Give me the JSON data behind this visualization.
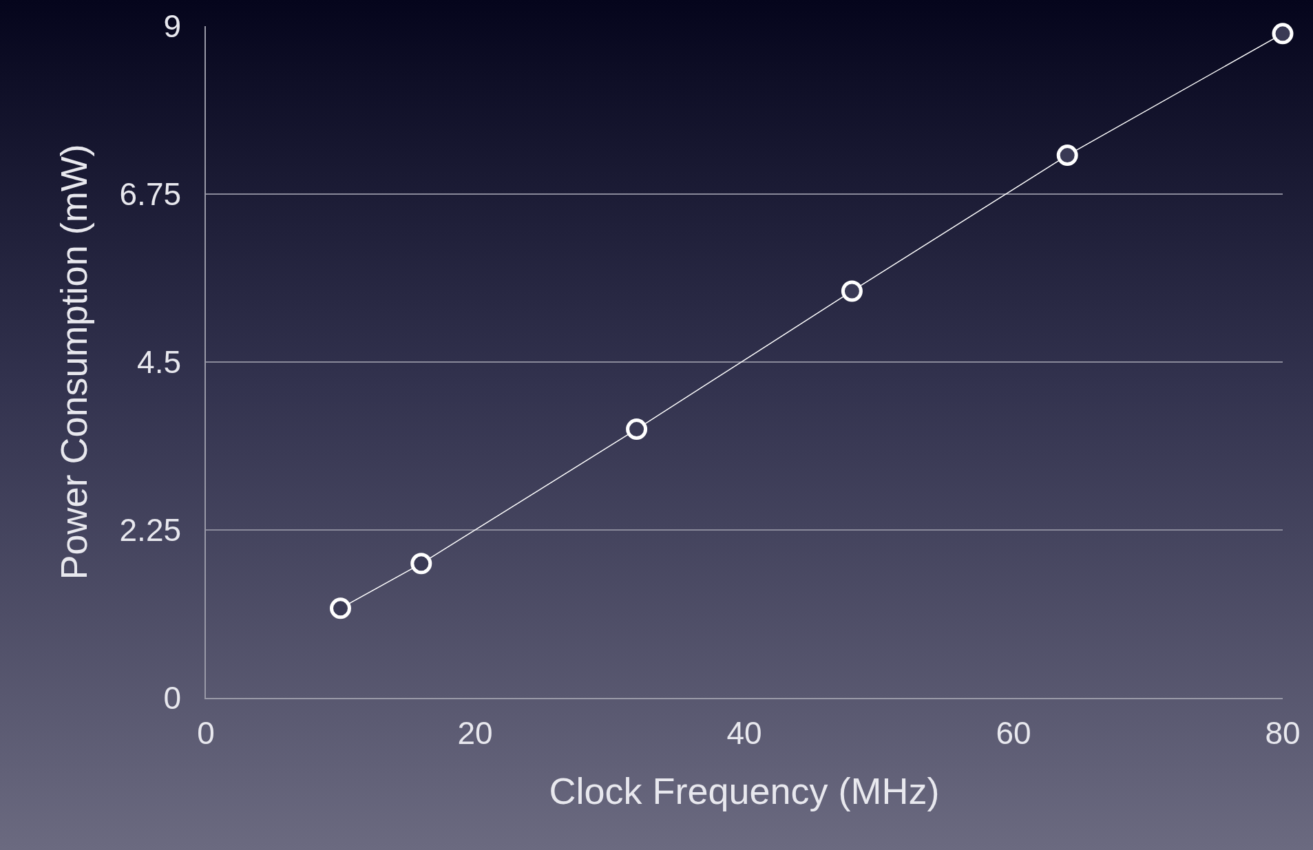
{
  "chart_data": {
    "type": "line",
    "xlabel": "Clock Frequency (MHz)",
    "ylabel": "Power Consumption (mW)",
    "x": [
      10,
      16,
      32,
      48,
      64,
      80
    ],
    "series": [
      {
        "color": "#ffffff",
        "values": [
          1.2,
          1.8,
          3.6,
          5.45,
          7.27,
          8.9
        ]
      }
    ],
    "xlim": [
      0,
      80
    ],
    "xticks": [
      0,
      20,
      40,
      60,
      80
    ],
    "ylim": [
      0,
      9
    ],
    "yticks": [
      0,
      2.25,
      4.5,
      6.75,
      9
    ],
    "grid": "y",
    "marker": "circle",
    "line_style": "solid",
    "legend": false
  }
}
